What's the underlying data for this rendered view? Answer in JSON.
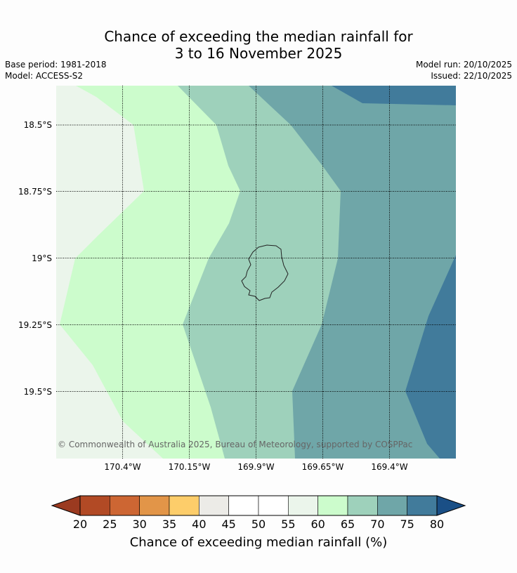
{
  "title": {
    "line1": "Chance of exceeding the median rainfall for",
    "line2": "3 to 16 November 2025"
  },
  "meta": {
    "base_period": "Base period: 1981-2018",
    "model": "Model: ACCESS-S2",
    "model_run": "Model run: 20/10/2025",
    "issued": "Issued: 22/10/2025"
  },
  "map": {
    "latitude_labels": [
      "18.5°S",
      "18.75°S",
      "19°S",
      "19.25°S",
      "19.5°S"
    ],
    "longitude_labels": [
      "170.4°W",
      "170.15°W",
      "169.9°W",
      "169.65°W",
      "169.4°W"
    ],
    "copyright": "© Commonwealth of Australia 2025, Bureau of Meteorology, supported by COSPPac",
    "region_colors": {
      "45-55": "#ebf5eb",
      "60-65": "#ccfccc",
      "65-70": "#9ed1bb",
      "70-75": "#6fa6a8",
      "75-80": "#417b9b",
      "coastline": "#222222"
    }
  },
  "colorbar": {
    "title": "Chance of exceeding median rainfall (%)",
    "ticks": [
      "20",
      "25",
      "30",
      "35",
      "40",
      "45",
      "50",
      "55",
      "60",
      "65",
      "70",
      "75",
      "80"
    ],
    "colors": [
      "#b24a25",
      "#cd6633",
      "#e29548",
      "#fdcd6a",
      "#ecebe7",
      "#ffffff",
      "#ffffff",
      "#ebf5eb",
      "#ccfccc",
      "#9ed1bb",
      "#6fa6a8",
      "#417b9b"
    ],
    "under_color": "#9b3a20",
    "over_color": "#1a4f86"
  }
}
